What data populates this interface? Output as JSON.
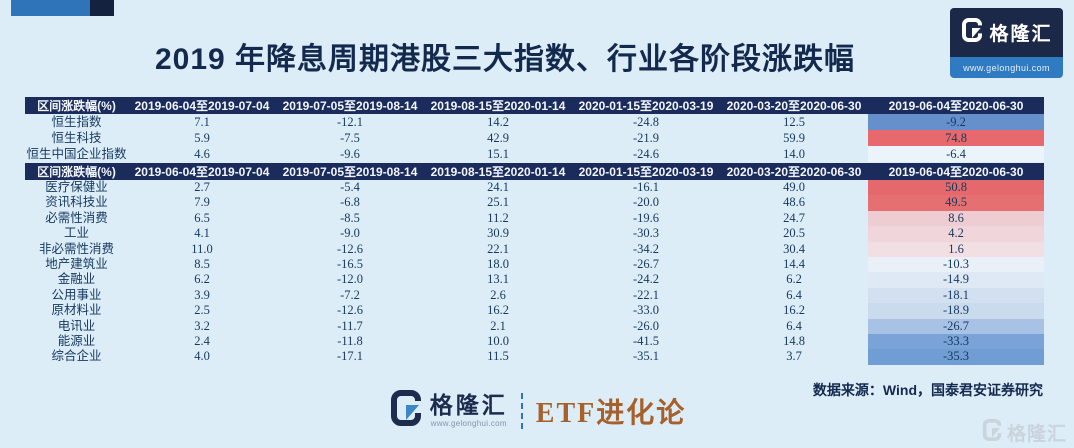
{
  "header": {
    "title": "2019 年降息周期港股三大指数、行业各阶段涨跌幅"
  },
  "brand": {
    "monogram": "G",
    "name": "格隆汇",
    "website": "www.gelonghui.com",
    "watermark_name": "格隆汇"
  },
  "footer": {
    "source": "数据来源：Wind，国泰君安证券研究",
    "series_title": "ETF进化论"
  },
  "colors": {
    "page_bg": "#dcedf8",
    "table_header_bg": "#1b2b5c",
    "accent_blue": "#2f74b8",
    "accent_navy": "#14213f",
    "text_navy": "#14294e",
    "series_brown": "#a6612b",
    "positive_red": "#e7696d",
    "negative_blue": "#6690cb"
  },
  "index_table": {
    "columns": [
      "区间涨跌幅(%)",
      "2019-06-04至2019-07-04",
      "2019-07-05至2019-08-14",
      "2019-08-15至2020-01-14",
      "2020-01-15至2020-03-19",
      "2020-03-20至2020-06-30",
      "2019-06-04至2020-06-30"
    ],
    "rows": [
      {
        "label": "恒生指数",
        "values": [
          "7.1",
          "-12.1",
          "14.2",
          "-24.8",
          "12.5",
          "-9.2"
        ],
        "total_bg": "#6690cb"
      },
      {
        "label": "恒生科技",
        "values": [
          "5.9",
          "-7.5",
          "42.9",
          "-21.9",
          "59.9",
          "74.8"
        ],
        "total_bg": "#e7696d"
      },
      {
        "label": "恒生中国企业指数",
        "values": [
          "4.6",
          "-9.6",
          "15.1",
          "-24.6",
          "14.0",
          "-6.4"
        ],
        "total_bg": "#ebf3fb"
      }
    ]
  },
  "industry_table": {
    "columns": [
      "区间涨跌幅(%)",
      "2019-06-04至2019-07-04",
      "2019-07-05至2019-08-14",
      "2019-08-15至2020-01-14",
      "2020-01-15至2020-03-19",
      "2020-03-20至2020-06-30",
      "2019-06-04至2020-06-30"
    ],
    "rows": [
      {
        "label": "医疗保健业",
        "values": [
          "2.7",
          "-5.4",
          "24.1",
          "-16.1",
          "49.0",
          "50.8"
        ],
        "total_bg": "#e5696c"
      },
      {
        "label": "资讯科技业",
        "values": [
          "7.9",
          "-6.8",
          "25.1",
          "-20.0",
          "48.6",
          "49.5"
        ],
        "total_bg": "#e66f72"
      },
      {
        "label": "必需性消费",
        "values": [
          "6.5",
          "-8.5",
          "11.2",
          "-19.6",
          "24.7",
          "8.6"
        ],
        "total_bg": "#edccd2"
      },
      {
        "label": "工业",
        "values": [
          "4.1",
          "-9.0",
          "30.9",
          "-30.3",
          "20.5",
          "4.2"
        ],
        "total_bg": "#f0d5da"
      },
      {
        "label": "非必需性消费",
        "values": [
          "11.0",
          "-12.6",
          "22.1",
          "-34.2",
          "30.4",
          "1.6"
        ],
        "total_bg": "#f2dfe3"
      },
      {
        "label": "地产建筑业",
        "values": [
          "8.5",
          "-16.5",
          "18.0",
          "-26.7",
          "14.4",
          "-10.3"
        ],
        "total_bg": "#eaf0f8"
      },
      {
        "label": "金融业",
        "values": [
          "6.2",
          "-12.0",
          "13.1",
          "-24.2",
          "6.2",
          "-14.9"
        ],
        "total_bg": "#dee9f5"
      },
      {
        "label": "公用事业",
        "values": [
          "3.9",
          "-7.2",
          "2.6",
          "-22.1",
          "6.4",
          "-18.1"
        ],
        "total_bg": "#d3e0f0"
      },
      {
        "label": "原材料业",
        "values": [
          "2.5",
          "-12.6",
          "16.2",
          "-33.0",
          "16.2",
          "-18.9"
        ],
        "total_bg": "#cbdbee"
      },
      {
        "label": "电讯业",
        "values": [
          "3.2",
          "-11.7",
          "2.1",
          "-26.0",
          "6.4",
          "-26.7"
        ],
        "total_bg": "#a7c2e4"
      },
      {
        "label": "能源业",
        "values": [
          "2.4",
          "-11.8",
          "10.0",
          "-41.5",
          "14.8",
          "-33.3"
        ],
        "total_bg": "#7aa4d7"
      },
      {
        "label": "综合企业",
        "values": [
          "4.0",
          "-17.1",
          "11.5",
          "-35.1",
          "3.7",
          "-35.3"
        ],
        "total_bg": "#709dd3"
      }
    ]
  },
  "chart_data": [
    {
      "type": "table",
      "label_column": "区间涨跌幅(%)",
      "columns": [
        "2019-06-04至2019-07-04",
        "2019-07-05至2019-08-14",
        "2019-08-15至2020-01-14",
        "2020-01-15至2020-03-19",
        "2020-03-20至2020-06-30",
        "2019-06-04至2020-06-30"
      ],
      "rows": [
        [
          "恒生指数",
          7.1,
          -12.1,
          14.2,
          -24.8,
          12.5,
          -9.2
        ],
        [
          "恒生科技",
          5.9,
          -7.5,
          42.9,
          -21.9,
          59.9,
          74.8
        ],
        [
          "恒生中国企业指数",
          4.6,
          -9.6,
          15.1,
          -24.6,
          14.0,
          -6.4
        ]
      ],
      "notes": "最后一列按数值红(涨)蓝(跌)热力着色"
    },
    {
      "type": "table",
      "label_column": "区间涨跌幅(%)",
      "columns": [
        "2019-06-04至2019-07-04",
        "2019-07-05至2019-08-14",
        "2019-08-15至2020-01-14",
        "2020-01-15至2020-03-19",
        "2020-03-20至2020-06-30",
        "2019-06-04至2020-06-30"
      ],
      "rows": [
        [
          "医疗保健业",
          2.7,
          -5.4,
          24.1,
          -16.1,
          49.0,
          50.8
        ],
        [
          "资讯科技业",
          7.9,
          -6.8,
          25.1,
          -20.0,
          48.6,
          49.5
        ],
        [
          "必需性消费",
          6.5,
          -8.5,
          11.2,
          -19.6,
          24.7,
          8.6
        ],
        [
          "工业",
          4.1,
          -9.0,
          30.9,
          -30.3,
          20.5,
          4.2
        ],
        [
          "非必需性消费",
          11.0,
          -12.6,
          22.1,
          -34.2,
          30.4,
          1.6
        ],
        [
          "地产建筑业",
          8.5,
          -16.5,
          18.0,
          -26.7,
          14.4,
          -10.3
        ],
        [
          "金融业",
          6.2,
          -12.0,
          13.1,
          -24.2,
          6.2,
          -14.9
        ],
        [
          "公用事业",
          3.9,
          -7.2,
          2.6,
          -22.1,
          6.4,
          -18.1
        ],
        [
          "原材料业",
          2.5,
          -12.6,
          16.2,
          -33.0,
          16.2,
          -18.9
        ],
        [
          "电讯业",
          3.2,
          -11.7,
          2.1,
          -26.0,
          6.4,
          -26.7
        ],
        [
          "能源业",
          2.4,
          -11.8,
          10.0,
          -41.5,
          14.8,
          -33.3
        ],
        [
          "综合企业",
          4.0,
          -17.1,
          11.5,
          -35.1,
          3.7,
          -35.3
        ]
      ],
      "notes": "最后一列按数值红(涨)蓝(跌)热力着色"
    }
  ]
}
